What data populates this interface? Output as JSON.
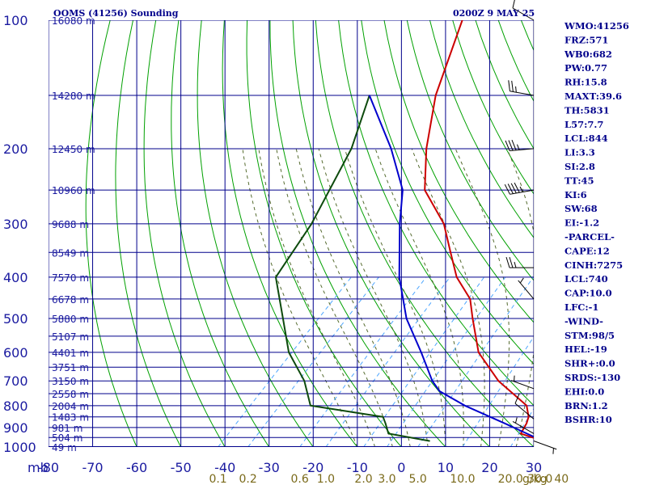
{
  "header": {
    "title": "OOMS (41256) Sounding",
    "datetime": "0200Z  9 MAY 25"
  },
  "indices": [
    "WMO:41256",
    "FRZ:571",
    "WB0:682",
    "PW:0.77",
    "RH:15.8",
    "MAXT:39.6",
    "TH:5831",
    "L57:7.7",
    "LCL:844",
    "LI:3.3",
    "SI:2.8",
    "TT:45",
    "KI:6",
    "SW:68",
    "EI:-1.2",
    "-PARCEL-",
    "CAPE:12",
    "CINH:7275",
    "LCL:740",
    "CAP:10.0",
    "LFC:-1",
    "-WIND-",
    "STM:98/5",
    "HEL:-19",
    "SHR+:0.0",
    "SRDS:-130",
    "EHI:0.0",
    "BRN:1.2",
    "BSHR:10"
  ],
  "colors": {
    "grid": "#00008b",
    "dry_adiabat": "#00a000",
    "moist_adiabat": "#556b2f",
    "mixing_ratio": "#4da6ff",
    "temperature": "#cc0000",
    "dewpoint": "#0d4a0d",
    "parcel": "#0000cc",
    "label_blue": "#1a1aa0",
    "label_olive": "#7a6a1a"
  },
  "chart_data": {
    "type": "line",
    "title": "OOMS (41256) Sounding",
    "x_axis": {
      "unit_label": "C",
      "range": [
        -80,
        30
      ],
      "ticks": [
        -80,
        -70,
        -60,
        -50,
        -40,
        -30,
        -20,
        -10,
        0,
        10,
        20,
        30
      ],
      "tick_labels": [
        "-80",
        "-70",
        "-60",
        "-50",
        "-40",
        "-30",
        "-20",
        "-10",
        "0",
        "10",
        "20",
        "30"
      ]
    },
    "y_axis": {
      "unit_label": "mb",
      "scale": "log",
      "range": [
        1000,
        100
      ],
      "ticks": [
        100,
        200,
        300,
        400,
        500,
        600,
        700,
        800,
        900,
        1000
      ],
      "tick_labels": [
        "100",
        "200",
        "300",
        "400",
        "500",
        "600",
        "700",
        "800",
        "900",
        "1000"
      ]
    },
    "height_labels": [
      {
        "p": 100,
        "label": "16080 m"
      },
      {
        "p": 150,
        "label": "14280 m"
      },
      {
        "p": 200,
        "label": "12450 m"
      },
      {
        "p": 250,
        "label": "10960 m"
      },
      {
        "p": 300,
        "label": "9688 m"
      },
      {
        "p": 350,
        "label": "8549 m"
      },
      {
        "p": 400,
        "label": "7570 m"
      },
      {
        "p": 450,
        "label": "6678 m"
      },
      {
        "p": 500,
        "label": "5880 m"
      },
      {
        "p": 550,
        "label": "5107 m"
      },
      {
        "p": 600,
        "label": "4401 m"
      },
      {
        "p": 650,
        "label": "3751 m"
      },
      {
        "p": 700,
        "label": "3150 m"
      },
      {
        "p": 750,
        "label": "2558 m"
      },
      {
        "p": 800,
        "label": "2004 m"
      },
      {
        "p": 850,
        "label": "1483 m"
      },
      {
        "p": 900,
        "label": "981 m"
      },
      {
        "p": 950,
        "label": "504 m"
      },
      {
        "p": 1000,
        "label": "49 m"
      }
    ],
    "mixing_ratio_labels": [
      {
        "w": 0.1,
        "label": "0.1"
      },
      {
        "w": 0.2,
        "label": "0.2"
      },
      {
        "w": 0.6,
        "label": "0.6"
      },
      {
        "w": 1.0,
        "label": "1.0"
      },
      {
        "w": 2.0,
        "label": "2.0"
      },
      {
        "w": 3.0,
        "label": "3.0"
      },
      {
        "w": 5.0,
        "label": "5.0"
      },
      {
        "w": 10.0,
        "label": "10.0"
      },
      {
        "w": 20.0,
        "label": "20.0"
      },
      {
        "w": 30.0,
        "label": "30.0"
      },
      {
        "w": 40.0,
        "label": "40"
      }
    ],
    "mixing_ratio_unit": "g/kg",
    "series": [
      {
        "key": "temperature",
        "points": [
          [
            968,
            30.7
          ],
          [
            930,
            24
          ],
          [
            880,
            23
          ],
          [
            850,
            22
          ],
          [
            800,
            19
          ],
          [
            700,
            7
          ],
          [
            600,
            -4
          ],
          [
            500,
            -13
          ],
          [
            450,
            -18
          ],
          [
            400,
            -26
          ],
          [
            350,
            -33
          ],
          [
            300,
            -41
          ],
          [
            250,
            -53
          ],
          [
            200,
            -62
          ],
          [
            150,
            -72
          ],
          [
            100,
            -83
          ]
        ]
      },
      {
        "key": "dewpoint",
        "points": [
          [
            968,
            5
          ],
          [
            930,
            -6
          ],
          [
            880,
            -9
          ],
          [
            850,
            -11
          ],
          [
            800,
            -30
          ],
          [
            700,
            -37
          ],
          [
            600,
            -47
          ],
          [
            500,
            -56
          ],
          [
            400,
            -67
          ],
          [
            300,
            -71
          ],
          [
            200,
            -79
          ],
          [
            150,
            -87
          ]
        ]
      },
      {
        "key": "parcel",
        "points": [
          [
            968,
            30.7
          ],
          [
            880,
            18
          ],
          [
            800,
            5
          ],
          [
            740,
            -4
          ],
          [
            700,
            -8
          ],
          [
            600,
            -17
          ],
          [
            500,
            -28
          ],
          [
            400,
            -39
          ],
          [
            300,
            -51
          ],
          [
            250,
            -58
          ],
          [
            200,
            -70
          ],
          [
            150,
            -87
          ]
        ]
      }
    ],
    "wind_barbs": [
      {
        "p": 968,
        "dir": 110,
        "kt": 5
      },
      {
        "p": 930,
        "dir": 300,
        "kt": 5
      },
      {
        "p": 860,
        "dir": 310,
        "kt": 10
      },
      {
        "p": 730,
        "dir": 290,
        "kt": 5
      },
      {
        "p": 450,
        "dir": 320,
        "kt": 5
      },
      {
        "p": 380,
        "dir": 270,
        "kt": 25
      },
      {
        "p": 250,
        "dir": 260,
        "kt": 45
      },
      {
        "p": 200,
        "dir": 265,
        "kt": 35
      },
      {
        "p": 150,
        "dir": 280,
        "kt": 25
      },
      {
        "p": 100,
        "dir": 300,
        "kt": 10
      }
    ]
  }
}
